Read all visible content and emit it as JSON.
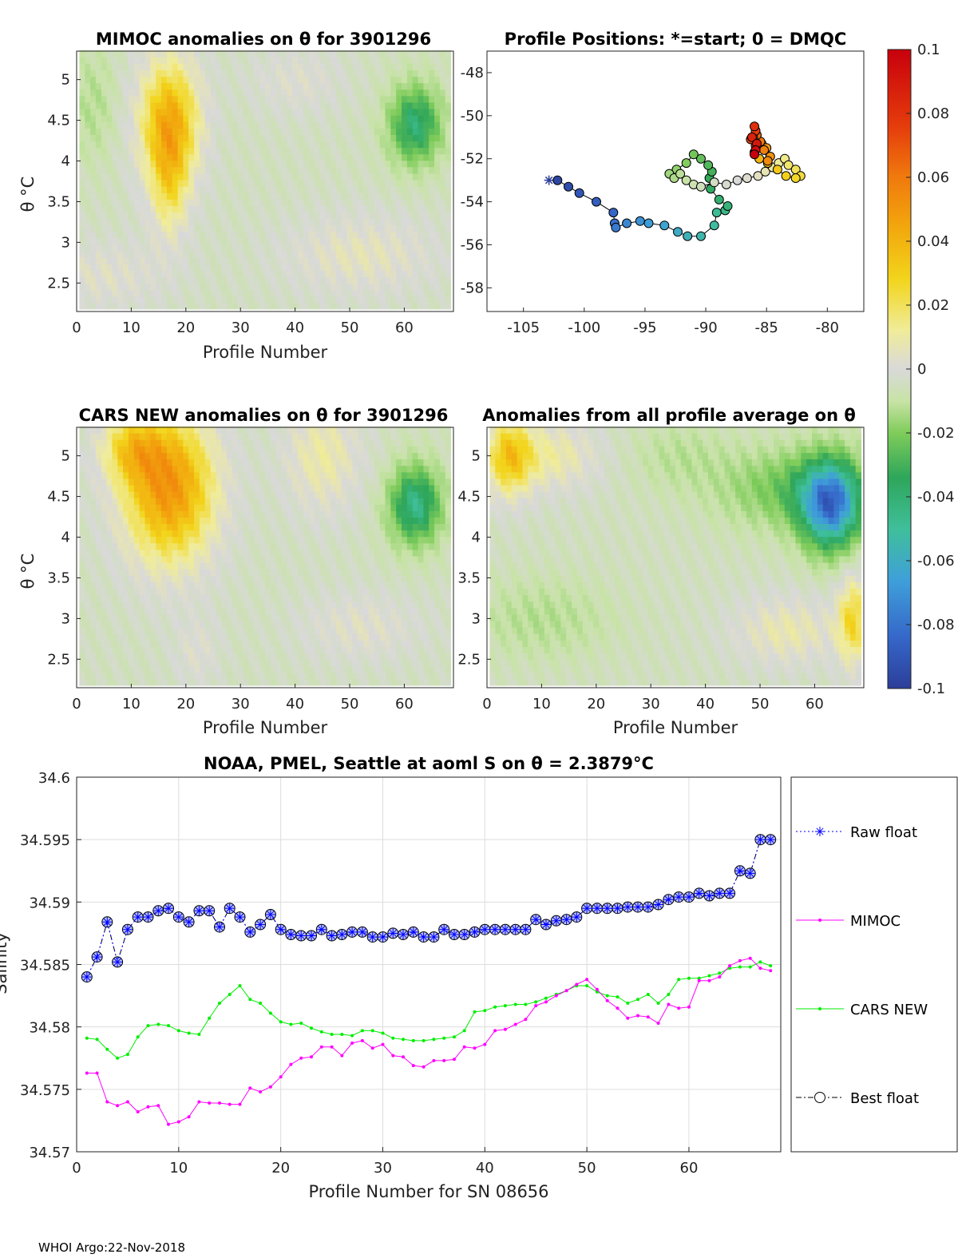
{
  "footer": "WHOI Argo:22-Nov-2018",
  "colors": {
    "ink": "#000000",
    "grid": "#dddddd",
    "raw": "#0000ff",
    "mimoc": "#ff00ff",
    "cars": "#00ee00",
    "best": "#000000"
  },
  "colormap": [
    "#2c3e99",
    "#3567c9",
    "#3fa0d9",
    "#3fbf9a",
    "#2ea65a",
    "#7fcc5a",
    "#c8e3a6",
    "#d9d9d9",
    "#f0ec9a",
    "#f2d51c",
    "#f2a80d",
    "#f07a0d",
    "#e53c0c",
    "#c8000c"
  ],
  "chart_data": [
    {
      "id": "mimoc",
      "type": "heatmap",
      "title": "MIMOC anomalies on θ  for 3901296",
      "xlabel": "Profile Number",
      "ylabel": "θ °C",
      "xlim": [
        0,
        69
      ],
      "ylim": [
        2.15,
        5.35
      ],
      "xticks": [
        "0",
        "10",
        "20",
        "30",
        "40",
        "50",
        "60"
      ],
      "yticks": [
        "2.5",
        "3",
        "3.5",
        "4",
        "4.5",
        "5"
      ],
      "features": [
        {
          "x": 17,
          "y": 4.5,
          "sx": 4,
          "sy": 0.55,
          "v": 0.05
        },
        {
          "x": 17,
          "y": 3.7,
          "sx": 2.5,
          "sy": 0.5,
          "v": 0.025
        },
        {
          "x": 62,
          "y": 4.45,
          "sx": 3.5,
          "sy": 0.35,
          "v": -0.045
        },
        {
          "x": 5,
          "y": 2.6,
          "sx": 8,
          "sy": 0.3,
          "v": 0.012
        },
        {
          "x": 52,
          "y": 2.85,
          "sx": 10,
          "sy": 0.35,
          "v": 0.015
        },
        {
          "x": 3,
          "y": 4.7,
          "sx": 3,
          "sy": 0.5,
          "v": -0.012
        },
        {
          "x": 40,
          "y": 5.0,
          "sx": 6,
          "sy": 0.3,
          "v": 0.01
        }
      ]
    },
    {
      "id": "positions",
      "type": "scatter",
      "title": "Profile Positions: *=start; 0 = DMQC",
      "xlim": [
        -108,
        -77
      ],
      "ylim": [
        -59.1,
        -47
      ],
      "xticks": [
        "-105",
        "-100",
        "-95",
        "-90",
        "-85",
        "-80"
      ],
      "yticks": [
        "-48",
        "-50",
        "-52",
        "-54",
        "-56",
        "-58"
      ],
      "lon": [
        -102.9,
        -102.2,
        -101.3,
        -100.4,
        -99.0,
        -97.6,
        -97.5,
        -97.4,
        -96.5,
        -95.4,
        -94.7,
        -93.4,
        -92.3,
        -91.5,
        -90.4,
        -89.3,
        -89.1,
        -88.4,
        -88.2,
        -88.9,
        -89.6,
        -89.7,
        -89.5,
        -89.8,
        -90.4,
        -91.0,
        -91.6,
        -92.4,
        -93.0,
        -92.6,
        -92.1,
        -91.6,
        -91.0,
        -90.4,
        -89.3,
        -88.3,
        -87.4,
        -86.6,
        -85.7,
        -85.1,
        -84.5,
        -84.0,
        -83.5,
        -83.2,
        -82.6,
        -82.2,
        -82.6,
        -83.4,
        -84.1,
        -84.9,
        -85.6,
        -86.0,
        -85.4,
        -85.0,
        -84.7,
        -84.9,
        -85.2,
        -85.5,
        -85.8,
        -86.1,
        -85.9,
        -86.3,
        -85.9,
        -86.0,
        -86.2,
        -85.8,
        -85.9,
        -86.0
      ],
      "lat": [
        -53.0,
        -53.0,
        -53.3,
        -53.6,
        -54.0,
        -54.5,
        -55.0,
        -55.2,
        -55.0,
        -54.9,
        -55.0,
        -55.1,
        -55.4,
        -55.6,
        -55.6,
        -55.1,
        -54.5,
        -54.4,
        -54.2,
        -53.9,
        -53.4,
        -52.9,
        -52.6,
        -52.3,
        -52.0,
        -51.8,
        -52.2,
        -52.5,
        -52.7,
        -52.9,
        -52.7,
        -53.0,
        -53.2,
        -53.3,
        -53.1,
        -53.2,
        -53.0,
        -52.9,
        -52.8,
        -52.6,
        -52.4,
        -52.2,
        -52.0,
        -52.3,
        -52.5,
        -52.8,
        -52.9,
        -52.8,
        -52.5,
        -52.2,
        -52.0,
        -51.7,
        -51.3,
        -51.5,
        -51.9,
        -52.1,
        -51.6,
        -51.2,
        -50.9,
        -51.0,
        -51.4,
        -51.1,
        -50.7,
        -50.5,
        -51.0,
        -51.3,
        -51.6,
        -51.8
      ]
    },
    {
      "id": "cars",
      "type": "heatmap",
      "title": "CARS NEW anomalies on θ for 3901296",
      "xlabel": "Profile Number",
      "ylabel": "θ °C",
      "xlim": [
        0,
        69
      ],
      "ylim": [
        2.15,
        5.35
      ],
      "xticks": [
        "0",
        "10",
        "20",
        "30",
        "40",
        "50",
        "60"
      ],
      "yticks": [
        "2.5",
        "3",
        "3.5",
        "4",
        "4.5",
        "5"
      ],
      "features": [
        {
          "x": 17,
          "y": 4.6,
          "sx": 6,
          "sy": 0.65,
          "v": 0.06
        },
        {
          "x": 10,
          "y": 5.1,
          "sx": 4,
          "sy": 0.3,
          "v": 0.03
        },
        {
          "x": 62,
          "y": 4.4,
          "sx": 3.5,
          "sy": 0.35,
          "v": -0.05
        },
        {
          "x": 45,
          "y": 5.0,
          "sx": 5,
          "sy": 0.5,
          "v": 0.02
        },
        {
          "x": 52,
          "y": 2.9,
          "sx": 8,
          "sy": 0.3,
          "v": 0.012
        },
        {
          "x": 22,
          "y": 2.6,
          "sx": 3,
          "sy": 0.3,
          "v": 0.01
        }
      ]
    },
    {
      "id": "allavg",
      "type": "heatmap",
      "title": "Anomalies from all profile average on θ",
      "xlabel": "Profile Number",
      "ylabel": "",
      "xlim": [
        0,
        69
      ],
      "ylim": [
        2.15,
        5.35
      ],
      "xticks": [
        "0",
        "10",
        "20",
        "30",
        "40",
        "50",
        "60"
      ],
      "yticks": [
        "2.5",
        "3",
        "3.5",
        "4",
        "4.5",
        "5"
      ],
      "features": [
        {
          "x": 63,
          "y": 4.4,
          "sx": 4,
          "sy": 0.4,
          "v": -0.075
        },
        {
          "x": 55,
          "y": 4.6,
          "sx": 9,
          "sy": 0.35,
          "v": -0.025
        },
        {
          "x": 4,
          "y": 5.0,
          "sx": 3,
          "sy": 0.35,
          "v": 0.04
        },
        {
          "x": 12,
          "y": 5.0,
          "sx": 6,
          "sy": 0.3,
          "v": 0.02
        },
        {
          "x": 10,
          "y": 3.0,
          "sx": 9,
          "sy": 0.35,
          "v": -0.012
        },
        {
          "x": 55,
          "y": 2.85,
          "sx": 7,
          "sy": 0.3,
          "v": 0.018
        },
        {
          "x": 67,
          "y": 3.0,
          "sx": 2,
          "sy": 0.4,
          "v": 0.035
        },
        {
          "x": 35,
          "y": 5.0,
          "sx": 6,
          "sy": 0.3,
          "v": -0.01
        }
      ]
    },
    {
      "id": "salinity",
      "type": "line",
      "title": "NOAA, PMEL, Seattle at aoml S on θ = 2.3879°C",
      "xlabel": "Profile Number for SN 08656",
      "ylabel": "Salinity",
      "xlim": [
        0,
        69
      ],
      "ylim": [
        34.57,
        34.6
      ],
      "xticks": [
        "0",
        "10",
        "20",
        "30",
        "40",
        "50",
        "60"
      ],
      "yticks": [
        "34.57",
        "34.575",
        "34.58",
        "34.585",
        "34.59",
        "34.595",
        "34.6"
      ],
      "x": [
        1,
        2,
        3,
        4,
        5,
        6,
        7,
        8,
        9,
        10,
        11,
        12,
        13,
        14,
        15,
        16,
        17,
        18,
        19,
        20,
        21,
        22,
        23,
        24,
        25,
        26,
        27,
        28,
        29,
        30,
        31,
        32,
        33,
        34,
        35,
        36,
        37,
        38,
        39,
        40,
        41,
        42,
        43,
        44,
        45,
        46,
        47,
        48,
        49,
        50,
        51,
        52,
        53,
        54,
        55,
        56,
        57,
        58,
        59,
        60,
        61,
        62,
        63,
        64,
        65,
        66,
        67,
        68
      ],
      "series": [
        {
          "name": "Raw float",
          "values": [
            34.584,
            34.5856,
            34.5884,
            34.5852,
            34.5878,
            34.5888,
            34.5888,
            34.5893,
            34.5895,
            34.5888,
            34.5884,
            34.5893,
            34.5893,
            34.588,
            34.5895,
            34.5888,
            34.5876,
            34.5882,
            34.589,
            34.5878,
            34.5874,
            34.5873,
            34.5873,
            34.5878,
            34.5873,
            34.5874,
            34.5876,
            34.5876,
            34.5872,
            34.5872,
            34.5875,
            34.5874,
            34.5876,
            34.5872,
            34.5872,
            34.5878,
            34.5874,
            34.5874,
            34.5876,
            34.5878,
            34.5878,
            34.5878,
            34.5878,
            34.5878,
            34.5886,
            34.5882,
            34.5885,
            34.5886,
            34.5888,
            34.5895,
            34.5895,
            34.5895,
            34.5895,
            34.5896,
            34.5896,
            34.5896,
            34.5898,
            34.5902,
            34.5904,
            34.5904,
            34.5907,
            34.5905,
            34.5907,
            34.5907,
            34.5925,
            34.5923,
            34.595,
            34.595
          ]
        },
        {
          "name": "MIMOC",
          "values": [
            34.5763,
            34.5763,
            34.574,
            34.5737,
            34.574,
            34.5732,
            34.5736,
            34.5737,
            34.5722,
            34.5724,
            34.5728,
            34.574,
            34.5739,
            34.5739,
            34.5738,
            34.5738,
            34.5751,
            34.5748,
            34.5752,
            34.576,
            34.577,
            34.5775,
            34.5776,
            34.5784,
            34.5784,
            34.5777,
            34.5787,
            34.5789,
            34.5783,
            34.5786,
            34.5777,
            34.5776,
            34.5769,
            34.5768,
            34.5773,
            34.5773,
            34.5774,
            34.5784,
            34.5783,
            34.5786,
            34.5797,
            34.5798,
            34.5802,
            34.5806,
            34.5817,
            34.582,
            34.5825,
            34.5829,
            34.5834,
            34.5838,
            34.583,
            34.5821,
            34.5815,
            34.5807,
            34.5809,
            34.5808,
            34.5803,
            34.5818,
            34.5815,
            34.5816,
            34.5837,
            34.5837,
            34.584,
            34.5849,
            34.5853,
            34.5855,
            34.5847,
            34.5845
          ]
        },
        {
          "name": "CARS NEW",
          "values": [
            34.5791,
            34.579,
            34.5782,
            34.5775,
            34.5778,
            34.5792,
            34.5801,
            34.5802,
            34.5801,
            34.5797,
            34.5795,
            34.5794,
            34.5807,
            34.5819,
            34.5826,
            34.5833,
            34.5822,
            34.5819,
            34.5811,
            34.5804,
            34.5802,
            34.5803,
            34.5799,
            34.5796,
            34.5794,
            34.5794,
            34.5793,
            34.5797,
            34.5797,
            34.5795,
            34.5791,
            34.579,
            34.5789,
            34.5789,
            34.579,
            34.5791,
            34.5792,
            34.5797,
            34.5812,
            34.5813,
            34.5816,
            34.5817,
            34.5818,
            34.5818,
            34.582,
            34.5823,
            34.5826,
            34.5829,
            34.5833,
            34.5833,
            34.5828,
            34.5825,
            34.5824,
            34.5819,
            34.5822,
            34.5826,
            34.5819,
            34.5826,
            34.5838,
            34.5839,
            34.5839,
            34.5841,
            34.5843,
            34.5847,
            34.5848,
            34.5848,
            34.5852,
            34.5849
          ]
        },
        {
          "name": "Best float",
          "values": [
            34.584,
            34.5856,
            34.5884,
            34.5852,
            34.5878,
            34.5888,
            34.5888,
            34.5893,
            34.5895,
            34.5888,
            34.5884,
            34.5893,
            34.5893,
            34.588,
            34.5895,
            34.5888,
            34.5876,
            34.5882,
            34.589,
            34.5878,
            34.5874,
            34.5873,
            34.5873,
            34.5878,
            34.5873,
            34.5874,
            34.5876,
            34.5876,
            34.5872,
            34.5872,
            34.5875,
            34.5874,
            34.5876,
            34.5872,
            34.5872,
            34.5878,
            34.5874,
            34.5874,
            34.5876,
            34.5878,
            34.5878,
            34.5878,
            34.5878,
            34.5878,
            34.5886,
            34.5882,
            34.5885,
            34.5886,
            34.5888,
            34.5895,
            34.5895,
            34.5895,
            34.5895,
            34.5896,
            34.5896,
            34.5896,
            34.5898,
            34.5902,
            34.5904,
            34.5904,
            34.5907,
            34.5905,
            34.5907,
            34.5907,
            34.5925,
            34.5923,
            34.595,
            34.595
          ]
        }
      ],
      "legend": [
        "Raw float",
        "MIMOC",
        "CARS NEW",
        "Best float"
      ]
    },
    {
      "id": "colorbar",
      "type": "colorbar",
      "range": [
        -0.1,
        0.1
      ],
      "ticks": [
        "0.1",
        "0.08",
        "0.06",
        "0.04",
        "0.02",
        "0",
        "-0.02",
        "-0.04",
        "-0.06",
        "-0.08",
        "-0.1"
      ]
    }
  ]
}
